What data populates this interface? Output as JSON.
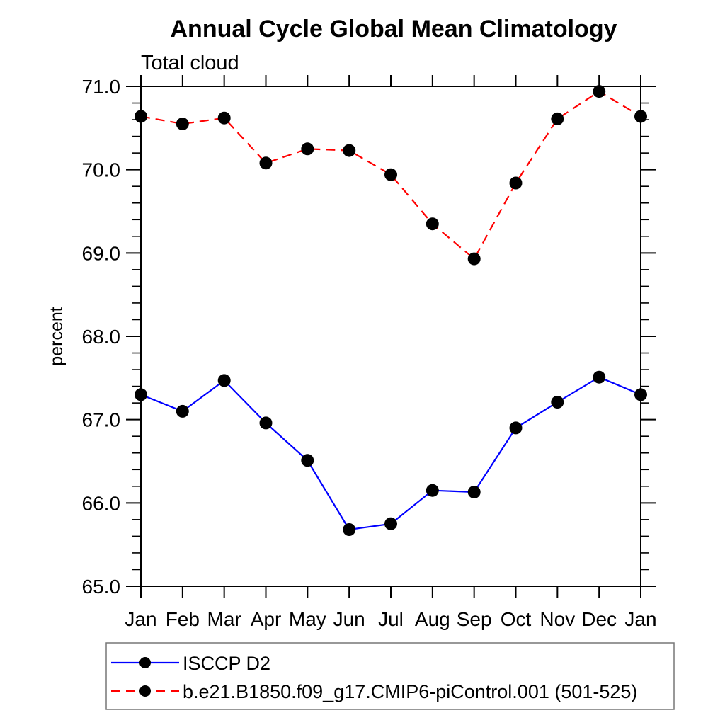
{
  "title": "Annual Cycle Global Mean Climatology",
  "subtitle": "Total cloud",
  "chart_data": {
    "type": "line",
    "categories": [
      "Jan",
      "Feb",
      "Mar",
      "Apr",
      "May",
      "Jun",
      "Jul",
      "Aug",
      "Sep",
      "Oct",
      "Nov",
      "Dec",
      "Jan"
    ],
    "series": [
      {
        "name": "ISCCP D2",
        "color": "#0000ff",
        "line_style": "solid",
        "marker": "circle",
        "marker_color": "#000000",
        "values": [
          67.3,
          67.1,
          67.47,
          66.96,
          66.51,
          65.68,
          65.75,
          66.15,
          66.13,
          66.9,
          67.21,
          67.51,
          67.3
        ]
      },
      {
        "name": "b.e21.B1850.f09_g17.CMIP6-piControl.001 (501-525)",
        "color": "#ff0000",
        "line_style": "dashed",
        "marker": "circle",
        "marker_color": "#000000",
        "values": [
          70.64,
          70.55,
          70.62,
          70.08,
          70.25,
          70.23,
          69.94,
          69.35,
          68.93,
          69.84,
          70.61,
          70.94,
          70.64
        ]
      }
    ],
    "xlabel": "",
    "ylabel": "percent",
    "ylim": [
      65.0,
      71.0
    ],
    "ytick_step": 1.0,
    "yminor_step": 0.2,
    "ytick_labels": [
      "65.0",
      "66.0",
      "67.0",
      "68.0",
      "69.0",
      "70.0",
      "71.0"
    ],
    "grid": false,
    "axis_color": "#000000",
    "legend_position": "bottom",
    "legend_border_color": "#777777"
  }
}
